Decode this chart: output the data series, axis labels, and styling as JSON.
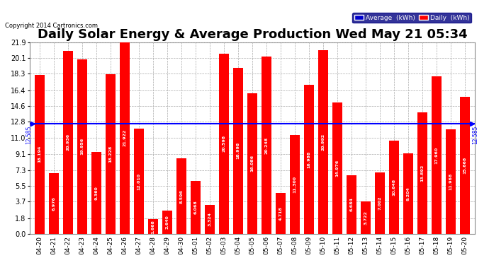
{
  "title": "Daily Solar Energy & Average Production Wed May 21 05:34",
  "copyright": "Copyright 2014 Cartronics.com",
  "categories": [
    "04-20",
    "04-21",
    "04-22",
    "04-23",
    "04-24",
    "04-25",
    "04-26",
    "04-27",
    "04-28",
    "04-29",
    "04-30",
    "05-01",
    "05-02",
    "05-03",
    "05-04",
    "05-05",
    "05-06",
    "05-07",
    "05-08",
    "05-09",
    "05-10",
    "05-11",
    "05-12",
    "05-13",
    "05-14",
    "05-15",
    "05-16",
    "05-17",
    "05-18",
    "05-19",
    "05-20"
  ],
  "values": [
    18.194,
    6.976,
    20.936,
    19.956,
    9.36,
    18.228,
    21.922,
    12.01,
    1.668,
    2.64,
    8.596,
    6.068,
    3.324,
    20.598,
    18.998,
    16.086,
    20.248,
    4.718,
    11.3,
    16.988,
    20.992,
    14.976,
    6.684,
    3.722,
    7.002,
    10.648,
    9.204,
    13.892,
    17.96,
    11.968,
    15.668
  ],
  "average": 12.585,
  "bar_color": "#ff0000",
  "average_line_color": "#0000ff",
  "background_color": "#ffffff",
  "plot_bg_color": "#ffffff",
  "grid_color": "#aaaaaa",
  "yticks": [
    0.0,
    1.8,
    3.7,
    5.5,
    7.3,
    9.1,
    11.0,
    12.8,
    14.6,
    16.4,
    18.3,
    20.1,
    21.9
  ],
  "ymax": 21.9,
  "ymin": 0.0,
  "title_fontsize": 13,
  "legend_avg_color": "#0000cd",
  "legend_daily_color": "#ff0000",
  "legend_avg_label": "Average  (kWh)",
  "legend_daily_label": "Daily  (kWh)"
}
